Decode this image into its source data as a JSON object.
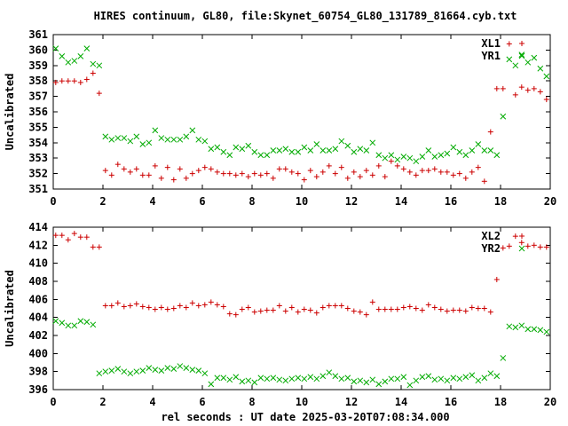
{
  "title": "HIRES continuum, GL80, file:Skynet_60754_GL80_131789_81664.cyb.txt",
  "xlabel": "rel seconds : UT date 2025-03-20T07:08:34.000",
  "chart_data": [
    {
      "type": "scatter",
      "ylabel": "Uncalibrated",
      "xlim": [
        0,
        20
      ],
      "ylim": [
        351,
        361
      ],
      "xticks": [
        0,
        2,
        4,
        6,
        8,
        10,
        12,
        14,
        16,
        18,
        20
      ],
      "xtick_labels": [
        "0",
        "2",
        "4",
        "6",
        "8",
        "10",
        "12",
        "14",
        "16",
        "18",
        "20"
      ],
      "yticks": [
        351,
        352,
        353,
        354,
        355,
        356,
        357,
        358,
        359,
        360,
        361
      ],
      "ytick_labels": [
        "351",
        "352",
        "353",
        "354",
        "355",
        "356",
        "357",
        "358",
        "359",
        "360",
        "361"
      ],
      "legend_position": "top-right",
      "series": [
        {
          "name": "XL1",
          "marker": "plus",
          "color": "#cc0000",
          "x": [
            0.1,
            0.35,
            0.6,
            0.85,
            1.1,
            1.35,
            1.6,
            1.85,
            2.1,
            2.35,
            2.6,
            2.85,
            3.1,
            3.35,
            3.6,
            3.85,
            4.1,
            4.35,
            4.6,
            4.85,
            5.1,
            5.35,
            5.6,
            5.85,
            6.1,
            6.35,
            6.6,
            6.85,
            7.1,
            7.35,
            7.6,
            7.85,
            8.1,
            8.35,
            8.6,
            8.85,
            9.1,
            9.35,
            9.6,
            9.85,
            10.1,
            10.35,
            10.6,
            10.85,
            11.1,
            11.35,
            11.6,
            11.85,
            12.1,
            12.35,
            12.6,
            12.85,
            13.1,
            13.35,
            13.6,
            13.85,
            14.1,
            14.35,
            14.6,
            14.85,
            15.1,
            15.35,
            15.6,
            15.85,
            16.1,
            16.35,
            16.6,
            16.85,
            17.1,
            17.35,
            17.6,
            17.85,
            18.1,
            18.35,
            18.6,
            18.85,
            19.1,
            19.35,
            19.6,
            19.85
          ],
          "y": [
            357.9,
            358.0,
            358.0,
            358.0,
            357.9,
            358.1,
            358.5,
            357.2,
            352.2,
            351.9,
            352.6,
            352.3,
            352.1,
            352.3,
            351.9,
            351.9,
            352.5,
            351.7,
            352.4,
            351.6,
            352.3,
            351.7,
            352.0,
            352.2,
            352.4,
            352.3,
            352.1,
            352.0,
            352.0,
            351.9,
            352.0,
            351.8,
            352.0,
            351.9,
            352.0,
            351.7,
            352.3,
            352.3,
            352.1,
            352.0,
            351.6,
            352.2,
            351.8,
            352.1,
            352.5,
            352.0,
            352.4,
            351.7,
            352.1,
            351.8,
            352.2,
            351.9,
            352.5,
            351.8,
            352.8,
            352.5,
            352.3,
            352.1,
            351.9,
            352.2,
            352.2,
            352.3,
            352.1,
            352.1,
            351.9,
            352.0,
            351.7,
            352.1,
            352.4,
            351.5,
            354.7,
            357.5,
            357.5,
            360.4,
            357.1,
            357.6,
            357.4,
            357.5,
            357.3,
            356.8
          ]
        },
        {
          "name": "YR1",
          "marker": "cross",
          "color": "#00aa00",
          "x": [
            0.1,
            0.35,
            0.6,
            0.85,
            1.1,
            1.35,
            1.6,
            1.85,
            2.1,
            2.35,
            2.6,
            2.85,
            3.1,
            3.35,
            3.6,
            3.85,
            4.1,
            4.35,
            4.6,
            4.85,
            5.1,
            5.35,
            5.6,
            5.85,
            6.1,
            6.35,
            6.6,
            6.85,
            7.1,
            7.35,
            7.6,
            7.85,
            8.1,
            8.35,
            8.6,
            8.85,
            9.1,
            9.35,
            9.6,
            9.85,
            10.1,
            10.35,
            10.6,
            10.85,
            11.1,
            11.35,
            11.6,
            11.85,
            12.1,
            12.35,
            12.6,
            12.85,
            13.1,
            13.35,
            13.6,
            13.85,
            14.1,
            14.35,
            14.6,
            14.85,
            15.1,
            15.35,
            15.6,
            15.85,
            16.1,
            16.35,
            16.6,
            16.85,
            17.1,
            17.35,
            17.6,
            17.85,
            18.1,
            18.35,
            18.6,
            18.85,
            19.1,
            19.35,
            19.6,
            19.85
          ],
          "y": [
            360.1,
            359.6,
            359.2,
            359.3,
            359.6,
            360.1,
            359.1,
            359.0,
            354.4,
            354.2,
            354.3,
            354.3,
            354.1,
            354.4,
            353.9,
            354.0,
            354.8,
            354.3,
            354.2,
            354.2,
            354.2,
            354.4,
            354.8,
            354.2,
            354.1,
            353.6,
            353.7,
            353.4,
            353.2,
            353.7,
            353.6,
            353.8,
            353.4,
            353.2,
            353.2,
            353.5,
            353.5,
            353.6,
            353.4,
            353.4,
            353.7,
            353.5,
            353.9,
            353.5,
            353.5,
            353.6,
            354.1,
            353.8,
            353.4,
            353.6,
            353.5,
            354.0,
            353.2,
            353.0,
            353.2,
            352.9,
            353.1,
            353.0,
            352.8,
            353.1,
            353.5,
            353.1,
            353.2,
            353.3,
            353.7,
            353.4,
            353.2,
            353.5,
            353.9,
            353.5,
            353.5,
            353.2,
            355.7,
            359.4,
            359.0,
            359.7,
            359.2,
            359.5,
            358.8,
            358.3
          ]
        }
      ]
    },
    {
      "type": "scatter",
      "ylabel": "Uncalibrated",
      "xlim": [
        0,
        20
      ],
      "ylim": [
        396,
        414
      ],
      "xticks": [
        0,
        2,
        4,
        6,
        8,
        10,
        12,
        14,
        16,
        18,
        20
      ],
      "xtick_labels": [
        "0",
        "2",
        "4",
        "6",
        "8",
        "10",
        "12",
        "14",
        "16",
        "18",
        "20"
      ],
      "yticks": [
        396,
        398,
        400,
        402,
        404,
        406,
        408,
        410,
        412,
        414
      ],
      "ytick_labels": [
        "396",
        "398",
        "400",
        "402",
        "404",
        "406",
        "408",
        "410",
        "412",
        "414"
      ],
      "legend_position": "top-right",
      "series": [
        {
          "name": "XL2",
          "marker": "plus",
          "color": "#cc0000",
          "x": [
            0.1,
            0.35,
            0.6,
            0.85,
            1.1,
            1.35,
            1.6,
            1.85,
            2.1,
            2.35,
            2.6,
            2.85,
            3.1,
            3.35,
            3.6,
            3.85,
            4.1,
            4.35,
            4.6,
            4.85,
            5.1,
            5.35,
            5.6,
            5.85,
            6.1,
            6.35,
            6.6,
            6.85,
            7.1,
            7.35,
            7.6,
            7.85,
            8.1,
            8.35,
            8.6,
            8.85,
            9.1,
            9.35,
            9.6,
            9.85,
            10.1,
            10.35,
            10.6,
            10.85,
            11.1,
            11.35,
            11.6,
            11.85,
            12.1,
            12.35,
            12.6,
            12.85,
            13.1,
            13.35,
            13.6,
            13.85,
            14.1,
            14.35,
            14.6,
            14.85,
            15.1,
            15.35,
            15.6,
            15.85,
            16.1,
            16.35,
            16.6,
            16.85,
            17.1,
            17.35,
            17.6,
            17.85,
            18.1,
            18.35,
            18.6,
            18.85,
            19.1,
            19.35,
            19.6,
            19.85
          ],
          "y": [
            413.1,
            413.1,
            412.6,
            413.3,
            412.9,
            412.9,
            411.8,
            411.8,
            405.3,
            405.3,
            405.6,
            405.2,
            405.3,
            405.5,
            405.2,
            405.1,
            404.9,
            405.1,
            404.9,
            405.0,
            405.3,
            405.1,
            405.6,
            405.3,
            405.4,
            405.7,
            405.4,
            405.2,
            404.4,
            404.3,
            404.9,
            405.1,
            404.6,
            404.7,
            404.8,
            404.8,
            405.3,
            404.7,
            405.1,
            404.6,
            404.9,
            404.8,
            404.5,
            405.1,
            405.3,
            405.3,
            405.3,
            405.0,
            404.7,
            404.6,
            404.3,
            405.7,
            404.9,
            404.9,
            404.9,
            404.9,
            405.1,
            405.2,
            405.0,
            404.8,
            405.4,
            405.1,
            404.9,
            404.7,
            404.8,
            404.8,
            404.7,
            405.1,
            405.0,
            405.0,
            404.6,
            408.2,
            411.7,
            411.9,
            413.0,
            412.3,
            411.9,
            412.0,
            411.8,
            411.8
          ]
        },
        {
          "name": "YR2",
          "marker": "cross",
          "color": "#00aa00",
          "x": [
            0.1,
            0.35,
            0.6,
            0.85,
            1.1,
            1.35,
            1.6,
            1.85,
            2.1,
            2.35,
            2.6,
            2.85,
            3.1,
            3.35,
            3.6,
            3.85,
            4.1,
            4.35,
            4.6,
            4.85,
            5.1,
            5.35,
            5.6,
            5.85,
            6.1,
            6.35,
            6.6,
            6.85,
            7.1,
            7.35,
            7.6,
            7.85,
            8.1,
            8.35,
            8.6,
            8.85,
            9.1,
            9.35,
            9.6,
            9.85,
            10.1,
            10.35,
            10.6,
            10.85,
            11.1,
            11.35,
            11.6,
            11.85,
            12.1,
            12.35,
            12.6,
            12.85,
            13.1,
            13.35,
            13.6,
            13.85,
            14.1,
            14.35,
            14.6,
            14.85,
            15.1,
            15.35,
            15.6,
            15.85,
            16.1,
            16.35,
            16.6,
            16.85,
            17.1,
            17.35,
            17.6,
            17.85,
            18.1,
            18.35,
            18.6,
            18.85,
            19.1,
            19.35,
            19.6,
            19.85
          ],
          "y": [
            403.6,
            403.4,
            403.1,
            403.1,
            403.6,
            403.5,
            403.2,
            397.8,
            398.0,
            398.1,
            398.3,
            398.0,
            397.8,
            398.0,
            398.1,
            398.4,
            398.2,
            398.1,
            398.4,
            398.3,
            398.6,
            398.4,
            398.2,
            398.1,
            397.8,
            396.6,
            397.3,
            397.3,
            397.1,
            397.4,
            396.9,
            397.0,
            396.8,
            397.3,
            397.2,
            397.3,
            397.1,
            397.0,
            397.2,
            397.3,
            397.2,
            397.4,
            397.2,
            397.5,
            397.9,
            397.5,
            397.2,
            397.3,
            396.9,
            397.0,
            396.8,
            397.1,
            396.6,
            396.9,
            397.2,
            397.2,
            397.4,
            396.5,
            397.0,
            397.4,
            397.5,
            397.1,
            397.2,
            397.0,
            397.3,
            397.2,
            397.4,
            397.6,
            397.0,
            397.3,
            397.8,
            397.5,
            399.5,
            403.0,
            402.9,
            403.1,
            402.7,
            402.7,
            402.6,
            402.4
          ]
        }
      ]
    }
  ]
}
